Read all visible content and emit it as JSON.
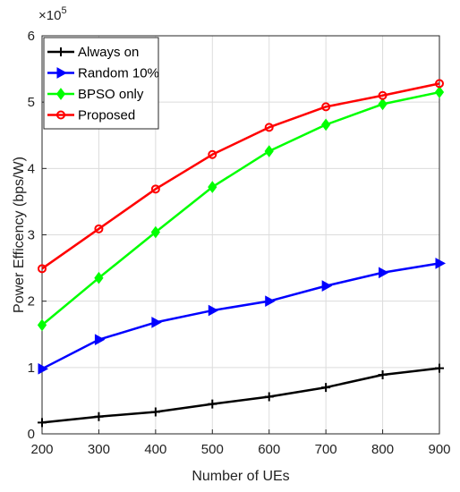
{
  "chart_data": {
    "type": "line",
    "title": "",
    "xlabel": "Number of UEs",
    "ylabel": "Power Efficency (bps/W)",
    "y_exponent_label": "×10",
    "y_exponent_power": "5",
    "xlim": [
      200,
      900
    ],
    "ylim": [
      0,
      6
    ],
    "x": [
      200,
      300,
      400,
      500,
      600,
      700,
      800,
      900
    ],
    "x_ticks": [
      "200",
      "300",
      "400",
      "500",
      "600",
      "700",
      "800",
      "900"
    ],
    "y_ticks": [
      "0",
      "1",
      "2",
      "3",
      "4",
      "5",
      "6"
    ],
    "grid": true,
    "legend_position": "top-left",
    "series": [
      {
        "name": "Always on",
        "color": "#000000",
        "marker": "plus",
        "values": [
          0.17,
          0.26,
          0.33,
          0.45,
          0.56,
          0.7,
          0.89,
          0.99
        ]
      },
      {
        "name": "Random 10%",
        "color": "#0000ff",
        "marker": "triangle-right",
        "values": [
          0.98,
          1.42,
          1.68,
          1.86,
          2.0,
          2.23,
          2.43,
          2.57
        ]
      },
      {
        "name": "BPSO only",
        "color": "#00ff00",
        "marker": "diamond",
        "values": [
          1.64,
          2.35,
          3.04,
          3.72,
          4.26,
          4.66,
          4.97,
          5.15
        ]
      },
      {
        "name": "Proposed",
        "color": "#ff0000",
        "marker": "circle",
        "values": [
          2.49,
          3.09,
          3.69,
          4.21,
          4.62,
          4.93,
          5.1,
          5.28
        ]
      }
    ]
  }
}
